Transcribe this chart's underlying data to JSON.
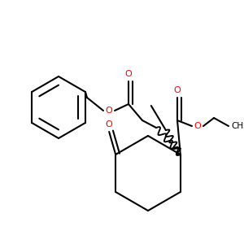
{
  "bg": "#ffffff",
  "bc": "#000000",
  "oc": "#ff0000",
  "lw": 1.5,
  "dbo": 0.013,
  "fs": 7.5,
  "figsize": [
    3.0,
    3.0
  ],
  "dpi": 100,
  "xlim": [
    0,
    300
  ],
  "ylim": [
    0,
    300
  ]
}
